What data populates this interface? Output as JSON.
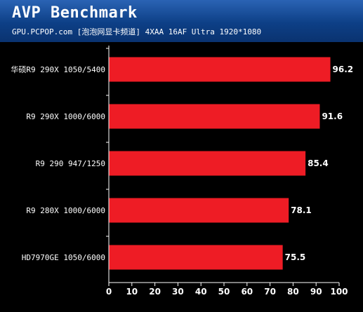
{
  "header": {
    "title": "AVP Benchmark",
    "subtitle": "GPU.PCPOP.com [泡泡网显卡频道] 4XAA 16AF Ultra 1920*1080"
  },
  "colors": {
    "header_bg": "#0d3f86",
    "bar": "#ee1c25",
    "background": "#000000"
  },
  "chart_data": {
    "type": "bar",
    "orientation": "horizontal",
    "title": "AVP Benchmark",
    "subtitle": "GPU.PCPOP.com [泡泡网显卡频道] 4XAA 16AF Ultra 1920*1080",
    "categories": [
      "华硕R9 290X 1050/5400",
      "R9 290X 1000/6000",
      "R9 290 947/1250",
      "R9 280X 1000/6000",
      "HD7970GE 1050/6000"
    ],
    "values": [
      96.2,
      91.6,
      85.4,
      78.1,
      75.5
    ],
    "value_labels": [
      "96.2",
      "91.6",
      "85.4",
      "78.1",
      "75.5"
    ],
    "xlim": [
      0,
      100
    ],
    "xticks": [
      0,
      10,
      20,
      30,
      40,
      50,
      60,
      70,
      80,
      90,
      100
    ],
    "xlabel": "",
    "ylabel": "",
    "grid": false,
    "legend": "none"
  }
}
